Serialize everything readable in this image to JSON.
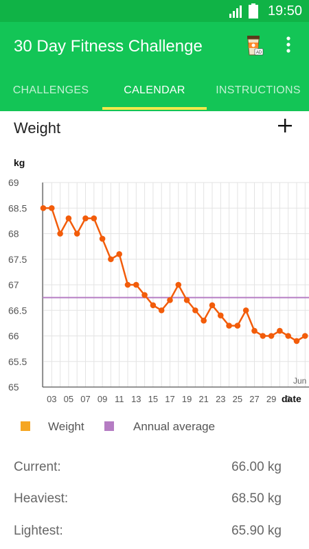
{
  "status_bar": {
    "time": "19:50"
  },
  "app_bar": {
    "title": "30 Day Fitness Challenge",
    "ad_icon_label": "AD"
  },
  "tabs": [
    {
      "label": "CHALLENGES",
      "active": false
    },
    {
      "label": "CALENDAR",
      "active": true
    },
    {
      "label": "INSTRUCTIONS",
      "active": false
    }
  ],
  "section": {
    "title": "Weight"
  },
  "chart_data": {
    "type": "line",
    "ylabel": "kg",
    "xlabel": "date",
    "month_label": "Jun",
    "ylim": [
      65,
      69
    ],
    "y_ticks": [
      "65",
      "65.5",
      "66",
      "66.5",
      "67",
      "67.5",
      "68",
      "68.5",
      "69"
    ],
    "x_ticks": [
      "03",
      "05",
      "07",
      "09",
      "11",
      "13",
      "15",
      "17",
      "19",
      "21",
      "23",
      "25",
      "27",
      "29",
      "3"
    ],
    "x": [
      2,
      3,
      4,
      5,
      6,
      7,
      8,
      9,
      10,
      11,
      12,
      13,
      14,
      15,
      16,
      17,
      18,
      19,
      20,
      21,
      22,
      23,
      24,
      25,
      26,
      27,
      28,
      29,
      30,
      31,
      32,
      33
    ],
    "series": [
      {
        "name": "Weight",
        "color": "#f25c0a",
        "values": [
          68.5,
          68.5,
          68.0,
          68.3,
          68.0,
          68.3,
          68.3,
          67.9,
          67.5,
          67.6,
          67.0,
          67.0,
          66.8,
          66.6,
          66.5,
          66.7,
          67.0,
          66.7,
          66.5,
          66.3,
          66.6,
          66.4,
          66.2,
          66.2,
          66.5,
          66.1,
          66.0,
          66.0,
          66.1,
          66.0,
          65.9,
          66.0
        ]
      },
      {
        "name": "Annual average",
        "color": "#b57cc3",
        "value": 66.75
      }
    ],
    "legend": [
      {
        "label": "Weight",
        "color": "#f5a623"
      },
      {
        "label": "Annual average",
        "color": "#b57cc3"
      }
    ],
    "grid": true
  },
  "stats": [
    {
      "label": "Current:",
      "value": "66.00 kg"
    },
    {
      "label": "Heaviest:",
      "value": "68.50 kg"
    },
    {
      "label": "Lightest:",
      "value": "65.90 kg"
    }
  ]
}
